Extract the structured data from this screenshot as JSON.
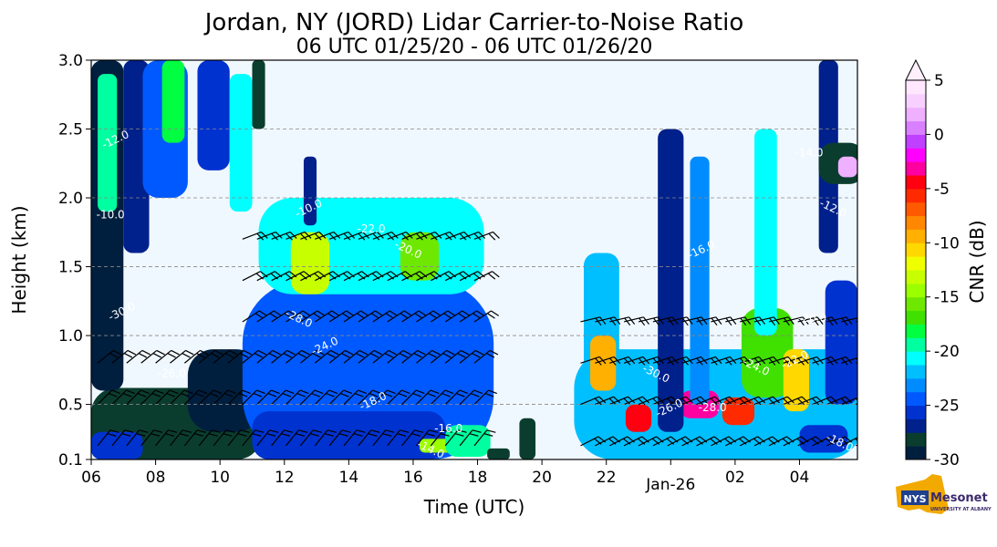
{
  "chart_data": {
    "type": "heatmap",
    "title": "Jordan, NY (JORD) Lidar Carrier-to-Noise Ratio",
    "subtitle": "06 UTC 01/25/20 - 06 UTC 01/26/20",
    "xlabel": "Time (UTC)",
    "ylabel": "Height (km)",
    "x_ticks": [
      {
        "h": 0,
        "label": "06"
      },
      {
        "h": 2,
        "label": "08"
      },
      {
        "h": 4,
        "label": "10"
      },
      {
        "h": 6,
        "label": "12"
      },
      {
        "h": 8,
        "label": "14"
      },
      {
        "h": 10,
        "label": "16"
      },
      {
        "h": 12,
        "label": "18"
      },
      {
        "h": 14,
        "label": "20"
      },
      {
        "h": 16,
        "label": "22"
      },
      {
        "h": 18,
        "label": "Jan-26",
        "offset": true
      },
      {
        "h": 20,
        "label": "02"
      },
      {
        "h": 22,
        "label": "04"
      }
    ],
    "xlim": [
      0,
      23.8
    ],
    "y_ticks": [
      "0.1",
      "0.5",
      "1.0",
      "1.5",
      "2.0",
      "2.5",
      "3.0"
    ],
    "ylim": [
      0.1,
      3.0
    ],
    "grid_y": true,
    "colorbar": {
      "label": "CNR (dB)",
      "ticks": [
        "-30",
        "-25",
        "-20",
        "-15",
        "-10",
        "-5",
        "0",
        "5"
      ],
      "range": [
        -30,
        5
      ],
      "extend": "max"
    },
    "contour_labels": [
      "-30.0",
      "-26.0",
      "-28.0",
      "-24.0",
      "-22.0",
      "-20.0",
      "-18.0",
      "-16.0",
      "-14.0",
      "-12.0",
      "-10.0"
    ],
    "regions": [
      {
        "t0": 0,
        "t1": 5.3,
        "h0": 0.1,
        "h1": 0.62,
        "cnr": -28
      },
      {
        "t0": 0,
        "t1": 1.6,
        "h0": 0.1,
        "h1": 0.3,
        "cnr": -26
      },
      {
        "t0": 0,
        "t1": 1.0,
        "h0": 0.6,
        "h1": 3.0,
        "cnr": -29
      },
      {
        "t0": 0.2,
        "t1": 0.8,
        "h0": 1.9,
        "h1": 2.9,
        "cnr": -19
      },
      {
        "t0": 1.0,
        "t1": 1.8,
        "h0": 1.6,
        "h1": 3.0,
        "cnr": -27
      },
      {
        "t0": 1.6,
        "t1": 3.0,
        "h0": 2.0,
        "h1": 3.0,
        "cnr": -25
      },
      {
        "t0": 2.2,
        "t1": 2.9,
        "h0": 2.4,
        "h1": 3.0,
        "cnr": -18
      },
      {
        "t0": 3.0,
        "t1": 5.3,
        "h0": 0.3,
        "h1": 0.9,
        "cnr": -29
      },
      {
        "t0": 3.3,
        "t1": 4.3,
        "h0": 2.2,
        "h1": 3.0,
        "cnr": -26
      },
      {
        "t0": 4.3,
        "t1": 5.0,
        "h0": 1.9,
        "h1": 2.9,
        "cnr": -21
      },
      {
        "t0": 5.0,
        "t1": 5.4,
        "h0": 2.5,
        "h1": 3.0,
        "cnr": -28
      },
      {
        "t0": 4.7,
        "t1": 12.5,
        "h0": 0.1,
        "h1": 1.4,
        "cnr": -24
      },
      {
        "t0": 5.0,
        "t1": 11.0,
        "h0": 0.1,
        "h1": 0.45,
        "cnr": -26
      },
      {
        "t0": 5.2,
        "t1": 12.2,
        "h0": 1.3,
        "h1": 2.0,
        "cnr": -21
      },
      {
        "t0": 6.2,
        "t1": 7.4,
        "h0": 1.3,
        "h1": 1.75,
        "cnr": -13
      },
      {
        "t0": 9.6,
        "t1": 10.8,
        "h0": 1.4,
        "h1": 1.75,
        "cnr": -16
      },
      {
        "t0": 6.6,
        "t1": 7.0,
        "h0": 1.8,
        "h1": 2.3,
        "cnr": -27
      },
      {
        "t0": 10.2,
        "t1": 11.8,
        "h0": 0.15,
        "h1": 0.25,
        "cnr": -14
      },
      {
        "t0": 11.0,
        "t1": 12.4,
        "h0": 0.12,
        "h1": 0.35,
        "cnr": -20
      },
      {
        "t0": 12.3,
        "t1": 13.0,
        "h0": 0.1,
        "h1": 0.18,
        "cnr": -28
      },
      {
        "t0": 13.3,
        "t1": 13.8,
        "h0": 0.1,
        "h1": 0.4,
        "cnr": -28
      },
      {
        "t0": 15.0,
        "t1": 24.0,
        "h0": 0.1,
        "h1": 0.9,
        "cnr": -22
      },
      {
        "t0": 15.3,
        "t1": 16.4,
        "h0": 0.3,
        "h1": 1.6,
        "cnr": -22
      },
      {
        "t0": 15.5,
        "t1": 16.3,
        "h0": 0.6,
        "h1": 1.0,
        "cnr": -9
      },
      {
        "t0": 16.6,
        "t1": 17.4,
        "h0": 0.3,
        "h1": 0.5,
        "cnr": -4
      },
      {
        "t0": 18.3,
        "t1": 19.5,
        "h0": 0.4,
        "h1": 0.6,
        "cnr": -3
      },
      {
        "t0": 19.6,
        "t1": 20.6,
        "h0": 0.35,
        "h1": 0.55,
        "cnr": -6
      },
      {
        "t0": 20.2,
        "t1": 21.8,
        "h0": 0.55,
        "h1": 1.2,
        "cnr": -17
      },
      {
        "t0": 21.5,
        "t1": 22.3,
        "h0": 0.45,
        "h1": 0.9,
        "cnr": -11
      },
      {
        "t0": 17.6,
        "t1": 18.4,
        "h0": 0.3,
        "h1": 2.5,
        "cnr": -27
      },
      {
        "t0": 18.6,
        "t1": 19.2,
        "h0": 0.5,
        "h1": 2.3,
        "cnr": -23
      },
      {
        "t0": 20.6,
        "t1": 21.3,
        "h0": 1.0,
        "h1": 2.5,
        "cnr": -21
      },
      {
        "t0": 22.6,
        "t1": 23.2,
        "h0": 1.6,
        "h1": 3.0,
        "cnr": -27
      },
      {
        "t0": 22.6,
        "t1": 24.0,
        "h0": 2.1,
        "h1": 2.4,
        "cnr": -28
      },
      {
        "t0": 23.2,
        "t1": 23.8,
        "h0": 2.15,
        "h1": 2.3,
        "cnr": 2
      },
      {
        "t0": 22.8,
        "t1": 23.8,
        "h0": 0.5,
        "h1": 1.4,
        "cnr": -26
      },
      {
        "t0": 22.0,
        "t1": 23.5,
        "h0": 0.15,
        "h1": 0.35,
        "cnr": -26
      }
    ]
  },
  "logo": {
    "badge": "NYS",
    "name": "Mesonet",
    "org": "UNIVERSITY AT ALBANY"
  }
}
